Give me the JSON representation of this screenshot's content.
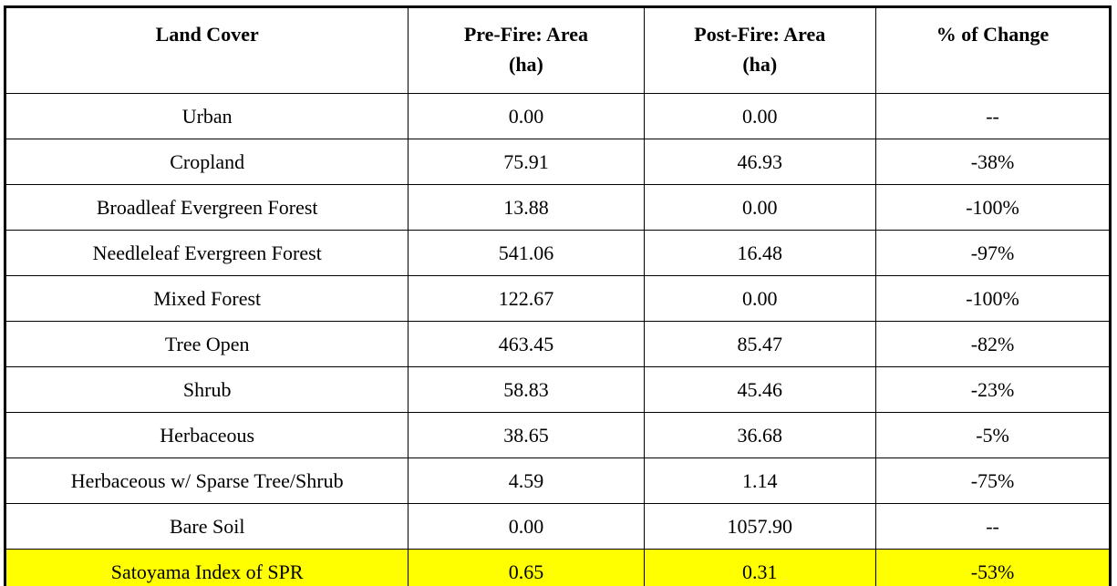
{
  "chart_data": {
    "type": "table",
    "columns": [
      "Land Cover",
      "Pre-Fire: Area\n(ha)",
      "Post-Fire: Area\n(ha)",
      "% of Change"
    ],
    "rows": [
      {
        "land_cover": "Urban",
        "pre_fire": "0.00",
        "post_fire": "0.00",
        "change": "--",
        "highlight": false
      },
      {
        "land_cover": "Cropland",
        "pre_fire": "75.91",
        "post_fire": "46.93",
        "change": "-38%",
        "highlight": false
      },
      {
        "land_cover": "Broadleaf Evergreen Forest",
        "pre_fire": "13.88",
        "post_fire": "0.00",
        "change": "-100%",
        "highlight": false
      },
      {
        "land_cover": "Needleleaf Evergreen Forest",
        "pre_fire": "541.06",
        "post_fire": "16.48",
        "change": "-97%",
        "highlight": false
      },
      {
        "land_cover": "Mixed Forest",
        "pre_fire": "122.67",
        "post_fire": "0.00",
        "change": "-100%",
        "highlight": false
      },
      {
        "land_cover": "Tree Open",
        "pre_fire": "463.45",
        "post_fire": "85.47",
        "change": "-82%",
        "highlight": false
      },
      {
        "land_cover": "Shrub",
        "pre_fire": "58.83",
        "post_fire": "45.46",
        "change": "-23%",
        "highlight": false
      },
      {
        "land_cover": "Herbaceous",
        "pre_fire": "38.65",
        "post_fire": "36.68",
        "change": "-5%",
        "highlight": false
      },
      {
        "land_cover": "Herbaceous w/ Sparse Tree/Shrub",
        "pre_fire": "4.59",
        "post_fire": "1.14",
        "change": "-75%",
        "highlight": false
      },
      {
        "land_cover": "Bare Soil",
        "pre_fire": "0.00",
        "post_fire": "1057.90",
        "change": "--",
        "highlight": false
      },
      {
        "land_cover": "Satoyama Index of SPR",
        "pre_fire": "0.65",
        "post_fire": "0.31",
        "change": "-53%",
        "highlight": true
      }
    ],
    "colors": {
      "highlight_row": "#FFFF00",
      "border": "#000000",
      "text": "#000000",
      "background": "#FFFFFF"
    },
    "layout": {
      "header_vertical_align": "top",
      "cell_text_align": "center",
      "grid": true
    }
  }
}
